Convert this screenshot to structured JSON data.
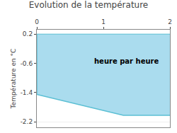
{
  "chart_data": {
    "type": "area",
    "title": "Evolution de la température",
    "ylabel": "Température en °C",
    "x": [
      0,
      0,
      1.3,
      2
    ],
    "series": [
      {
        "values": [
          0.2,
          0.2,
          0.2,
          0.2
        ],
        "color": "#5bbfd4"
      },
      {
        "values": [
          0.2,
          -1.45,
          -2.02,
          -2.02
        ],
        "color": "#5bbfd4"
      }
    ],
    "color": "#aadcee",
    "xlim": [
      0,
      2
    ],
    "ylim": [
      -2.35,
      0.32
    ],
    "xticks": [
      0,
      1,
      2
    ],
    "yticks": [
      0.2,
      -0.6,
      -1.4,
      -2.2
    ],
    "grid": "y",
    "annotations": [
      {
        "text": "heure par heure",
        "x": 1.35,
        "y": -0.55
      }
    ]
  }
}
